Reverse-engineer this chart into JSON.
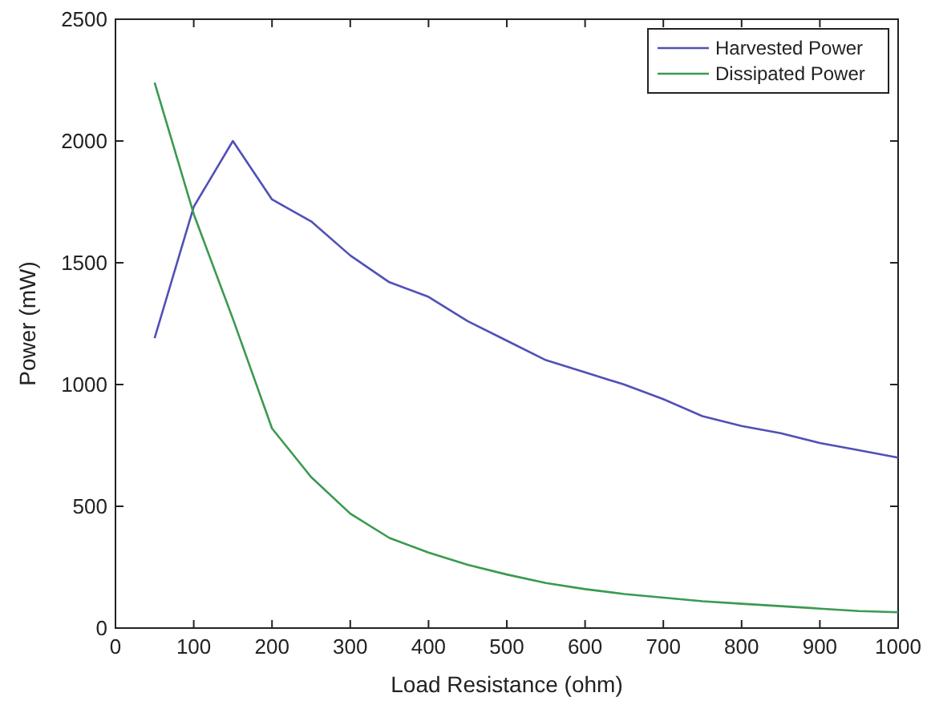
{
  "chart_data": {
    "type": "line",
    "xlabel": "Load Resistance (ohm)",
    "ylabel": "Power (mW)",
    "x": [
      50,
      100,
      150,
      200,
      250,
      300,
      350,
      400,
      450,
      500,
      550,
      600,
      650,
      700,
      750,
      800,
      850,
      900,
      950,
      1000
    ],
    "series": [
      {
        "name": "Harvested Power",
        "color": "#5050b8",
        "values": [
          1190,
          1730,
          2000,
          1760,
          1670,
          1530,
          1420,
          1360,
          1260,
          1180,
          1100,
          1050,
          1000,
          940,
          870,
          830,
          800,
          760,
          730,
          700
        ]
      },
      {
        "name": "Dissipated Power",
        "color": "#3a9a50",
        "values": [
          2240,
          1700,
          1270,
          820,
          620,
          470,
          370,
          310,
          260,
          220,
          185,
          160,
          140,
          125,
          110,
          100,
          90,
          80,
          70,
          65
        ]
      }
    ],
    "xlim": [
      0,
      1000
    ],
    "xticks": [
      0,
      100,
      200,
      300,
      400,
      500,
      600,
      700,
      800,
      900,
      1000
    ],
    "ylim": [
      0,
      2500
    ],
    "yticks": [
      0,
      500,
      1000,
      1500,
      2000,
      2500
    ],
    "legend": "top right",
    "grid": false
  }
}
